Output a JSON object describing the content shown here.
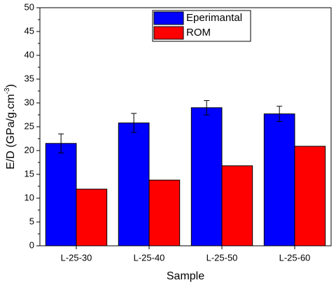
{
  "chart_data": {
    "type": "bar",
    "x_label": "Sample",
    "y_label": "E/D (GPa/g.cm",
    "y_label_superscript": "-3",
    "y_label_end": ")",
    "categories": [
      "L-25-30",
      "L-25-40",
      "L-25-50",
      "L-25-60"
    ],
    "series": [
      {
        "name": "Eperimantal",
        "color": "#0000ff",
        "values": [
          21.5,
          25.8,
          29.0,
          27.7
        ],
        "errors": [
          2.0,
          2.0,
          1.5,
          1.6
        ]
      },
      {
        "name": "ROM",
        "color": "#ff0000",
        "values": [
          11.9,
          13.8,
          16.8,
          20.9
        ]
      }
    ],
    "ylim": [
      0,
      50
    ],
    "yticks": [
      0,
      5,
      10,
      15,
      20,
      25,
      30,
      35,
      40,
      45,
      50
    ],
    "legend": "top"
  }
}
